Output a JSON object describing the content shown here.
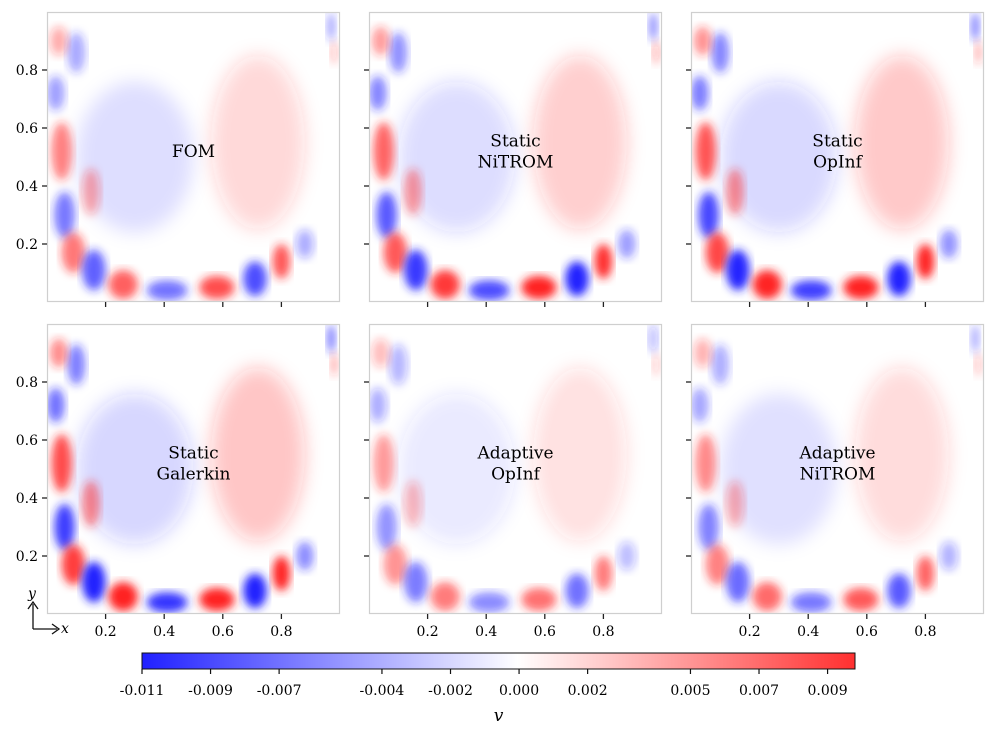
{
  "chart_data": {
    "type": "heatmap",
    "colormap": "bwr",
    "colors": {
      "negative": "#2222ff",
      "zero": "#ffffff",
      "positive": "#ff2222"
    },
    "panels": [
      {
        "label_lines": [
          "FOM"
        ],
        "intensity": 0.8,
        "row": 0,
        "col": 0
      },
      {
        "label_lines": [
          "Static",
          "NiTROM"
        ],
        "intensity": 1.0,
        "row": 0,
        "col": 1
      },
      {
        "label_lines": [
          "Static",
          "OpInf"
        ],
        "intensity": 1.1,
        "row": 0,
        "col": 2
      },
      {
        "label_lines": [
          "Static",
          "Galerkin"
        ],
        "intensity": 1.15,
        "row": 1,
        "col": 0
      },
      {
        "label_lines": [
          "Adaptive",
          "OpInf"
        ],
        "intensity": 0.65,
        "row": 1,
        "col": 1
      },
      {
        "label_lines": [
          "Adaptive",
          "NiTROM"
        ],
        "intensity": 0.75,
        "row": 1,
        "col": 2
      }
    ],
    "x_ticks": [
      "0.2",
      "0.4",
      "0.6",
      "0.8"
    ],
    "y_ticks": [
      "0.2",
      "0.4",
      "0.6",
      "0.8"
    ],
    "xlim": [
      0,
      1
    ],
    "ylim": [
      0,
      1
    ],
    "axis_indicator": {
      "x": "x",
      "y": "y"
    },
    "colorbar": {
      "label": "v",
      "ticks": [
        "-0.011",
        "-0.009",
        "-0.007",
        "-0.004",
        "-0.002",
        "0.000",
        "0.002",
        "0.005",
        "0.007",
        "0.009"
      ],
      "range": [
        -0.011,
        0.0098
      ]
    }
  }
}
